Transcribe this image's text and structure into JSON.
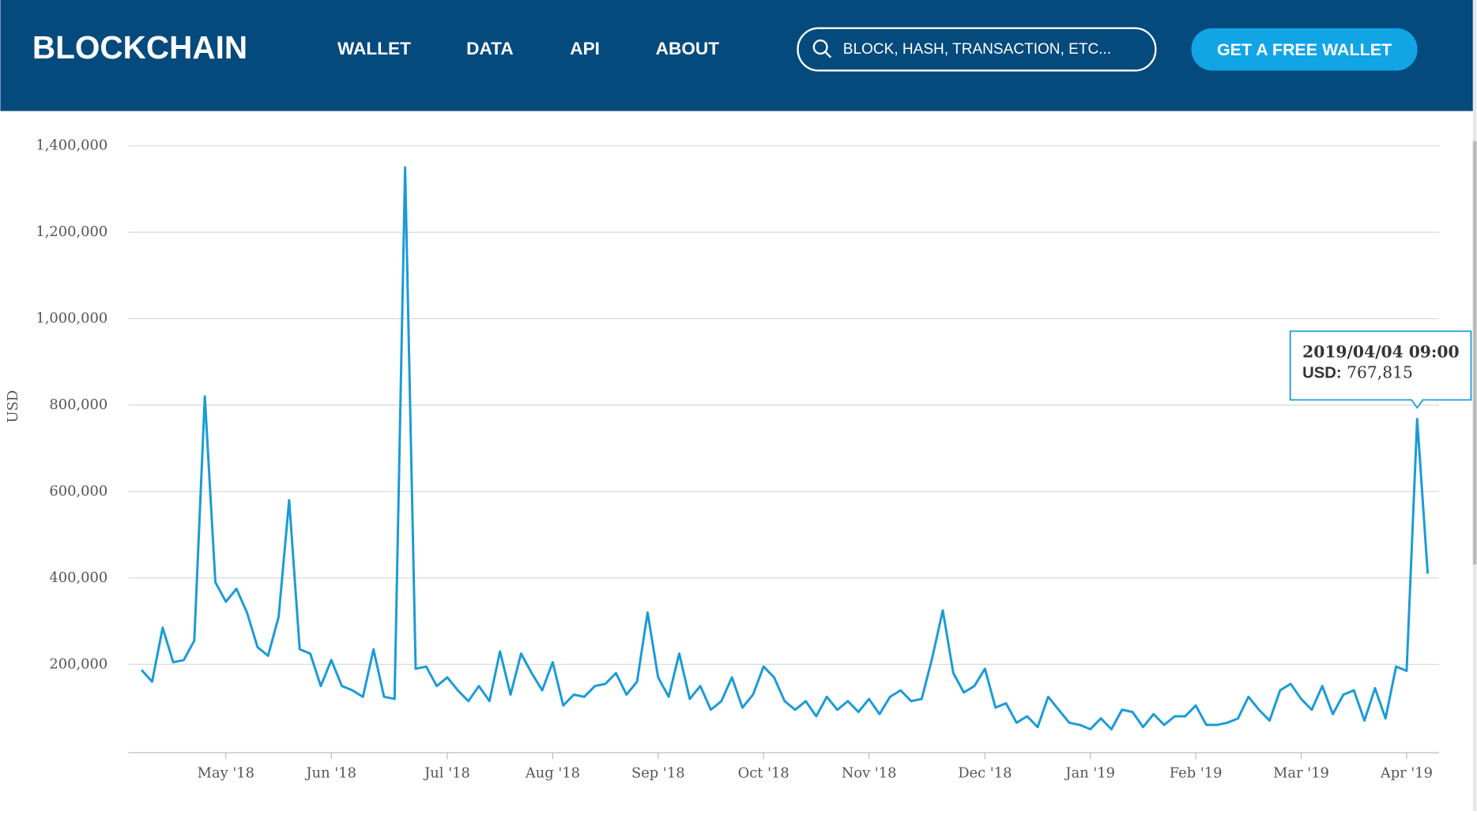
{
  "header": {
    "logo": "BLOCKCHAIN",
    "nav": [
      "WALLET",
      "DATA",
      "API",
      "ABOUT"
    ],
    "search_placeholder": "BLOCK, HASH, TRANSACTION, ETC...",
    "button": "GET A FREE WALLET"
  },
  "chart_data": {
    "type": "line",
    "y_label": "USD",
    "categories": [
      null,
      null,
      null,
      null,
      null,
      null,
      null,
      null,
      "May '18",
      null,
      null,
      null,
      null,
      null,
      null,
      null,
      null,
      null,
      "Jun '18",
      null,
      null,
      null,
      null,
      null,
      null,
      null,
      null,
      null,
      null,
      "Jul '18",
      null,
      null,
      null,
      null,
      null,
      null,
      null,
      null,
      null,
      "Aug '18",
      null,
      null,
      null,
      null,
      null,
      null,
      null,
      null,
      null,
      "Sep '18",
      null,
      null,
      null,
      null,
      null,
      null,
      null,
      null,
      null,
      "Oct '18",
      null,
      null,
      null,
      null,
      null,
      null,
      null,
      null,
      null,
      "Nov '18",
      null,
      null,
      null,
      null,
      null,
      null,
      null,
      null,
      null,
      null,
      "Dec '18",
      null,
      null,
      null,
      null,
      null,
      null,
      null,
      null,
      null,
      "Jan '19",
      null,
      null,
      null,
      null,
      null,
      null,
      null,
      null,
      null,
      "Feb '19",
      null,
      null,
      null,
      null,
      null,
      null,
      null,
      null,
      null,
      "Mar '19",
      null,
      null,
      null,
      null,
      null,
      null,
      null,
      null,
      null,
      "Apr '19",
      null,
      null
    ],
    "series": [
      {
        "name": "USD",
        "color": "#1a9bd7",
        "values": [
          187000,
          160000,
          285000,
          205000,
          210000,
          255000,
          820000,
          390000,
          345000,
          375000,
          320000,
          240000,
          220000,
          310000,
          580000,
          235000,
          225000,
          150000,
          210000,
          150000,
          140000,
          125000,
          235000,
          125000,
          120000,
          1350000,
          190000,
          195000,
          150000,
          170000,
          140000,
          115000,
          150000,
          115000,
          230000,
          130000,
          225000,
          180000,
          140000,
          205000,
          105000,
          130000,
          125000,
          150000,
          155000,
          180000,
          130000,
          160000,
          320000,
          170000,
          125000,
          225000,
          120000,
          150000,
          95000,
          115000,
          170000,
          100000,
          130000,
          195000,
          170000,
          115000,
          95000,
          115000,
          80000,
          125000,
          95000,
          115000,
          90000,
          120000,
          85000,
          125000,
          140000,
          115000,
          120000,
          215000,
          325000,
          180000,
          135000,
          150000,
          190000,
          100000,
          110000,
          65000,
          80000,
          55000,
          125000,
          95000,
          65000,
          60000,
          50000,
          75000,
          50000,
          95000,
          90000,
          55000,
          85000,
          60000,
          80000,
          80000,
          105000,
          60000,
          60000,
          65000,
          75000,
          125000,
          95000,
          70000,
          140000,
          155000,
          120000,
          95000,
          150000,
          85000,
          130000,
          140000,
          70000,
          145000,
          75000,
          195000,
          185000,
          767815,
          410000
        ]
      }
    ],
    "ylim": [
      0,
      1400000
    ],
    "yticks": [
      {
        "value": 200000,
        "label": "200,000"
      },
      {
        "value": 400000,
        "label": "400,000"
      },
      {
        "value": 600000,
        "label": "600,000"
      },
      {
        "value": 800000,
        "label": "800,000"
      },
      {
        "value": 1000000,
        "label": "1,000,000"
      },
      {
        "value": 1200000,
        "label": "1,200,000"
      },
      {
        "value": 1400000,
        "label": "1,400,000"
      }
    ],
    "grid": true,
    "tooltip": {
      "label": "2019/04/04 09:00",
      "series": "USD:",
      "value": 767815,
      "value_label": "767,815"
    }
  }
}
